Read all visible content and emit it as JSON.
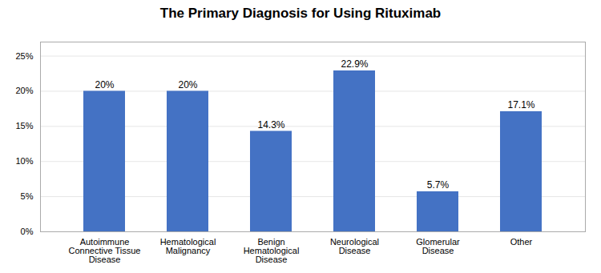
{
  "chart_data": {
    "type": "bar",
    "title": "The Primary Diagnosis for Using Rituximab",
    "categories": [
      "Autoimmune\nConnective Tissue\nDisease",
      "Hematological\nMalignancy",
      "Benign\nHematological\nDisease",
      "Neurological\nDisease",
      "Glomerular\nDisease",
      "Other"
    ],
    "values": [
      20.0,
      20.0,
      14.3,
      22.9,
      5.7,
      17.1
    ],
    "value_labels": [
      "20%",
      "20%",
      "14.3%",
      "22.9%",
      "5.7%",
      "17.1%"
    ],
    "data_labels": true,
    "color": "#4472C4",
    "ylim": [
      0,
      27
    ],
    "yticks": [
      {
        "value": 0,
        "label": "0%"
      },
      {
        "value": 5,
        "label": "5%"
      },
      {
        "value": 10,
        "label": "10%"
      },
      {
        "value": 15,
        "label": "15%"
      },
      {
        "value": 20,
        "label": "20%"
      },
      {
        "value": 25,
        "label": "25%"
      }
    ],
    "grid": true
  }
}
